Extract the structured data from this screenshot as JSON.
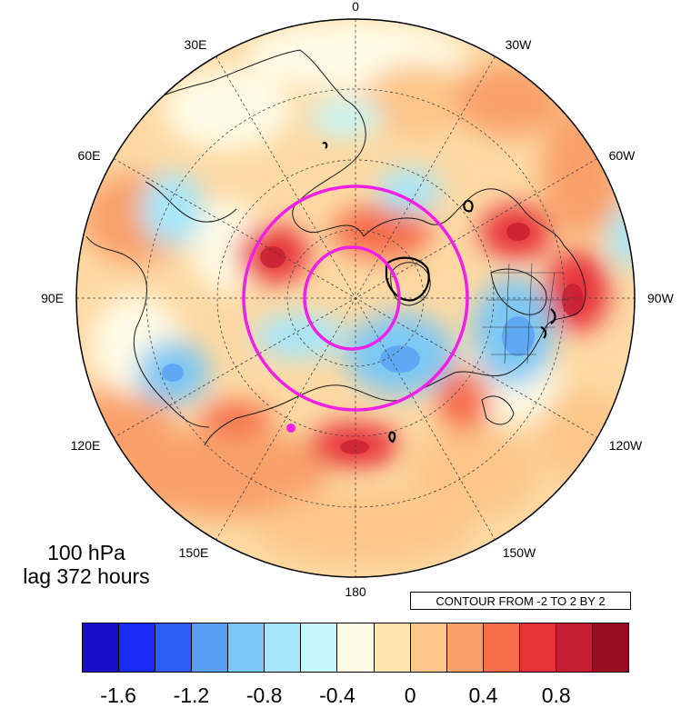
{
  "title": {
    "level": "100 hPa",
    "lag": "lag 372 hours"
  },
  "contour_note": "CONTOUR FROM -2 TO 2 BY 2",
  "longitude_labels": [
    "0",
    "30W",
    "60W",
    "90W",
    "120W",
    "150W",
    "180",
    "150E",
    "120E",
    "90E",
    "60E",
    "30E"
  ],
  "colorbar": {
    "colors": [
      "#1a0dc9",
      "#1a2af5",
      "#2e5cf5",
      "#57a0f5",
      "#7cc8f5",
      "#a6e6fa",
      "#c6f6f8",
      "#fffce6",
      "#fde2a9",
      "#fcc68a",
      "#f9a06a",
      "#f56d4b",
      "#e8323a",
      "#c41e31",
      "#990c22"
    ],
    "labels": [
      "-1.6",
      "-1.2",
      "-0.8",
      "-0.4",
      "0",
      "0.4",
      "0.8"
    ]
  },
  "colors": {
    "circle": "#f020e6",
    "contour": "#000000"
  }
}
